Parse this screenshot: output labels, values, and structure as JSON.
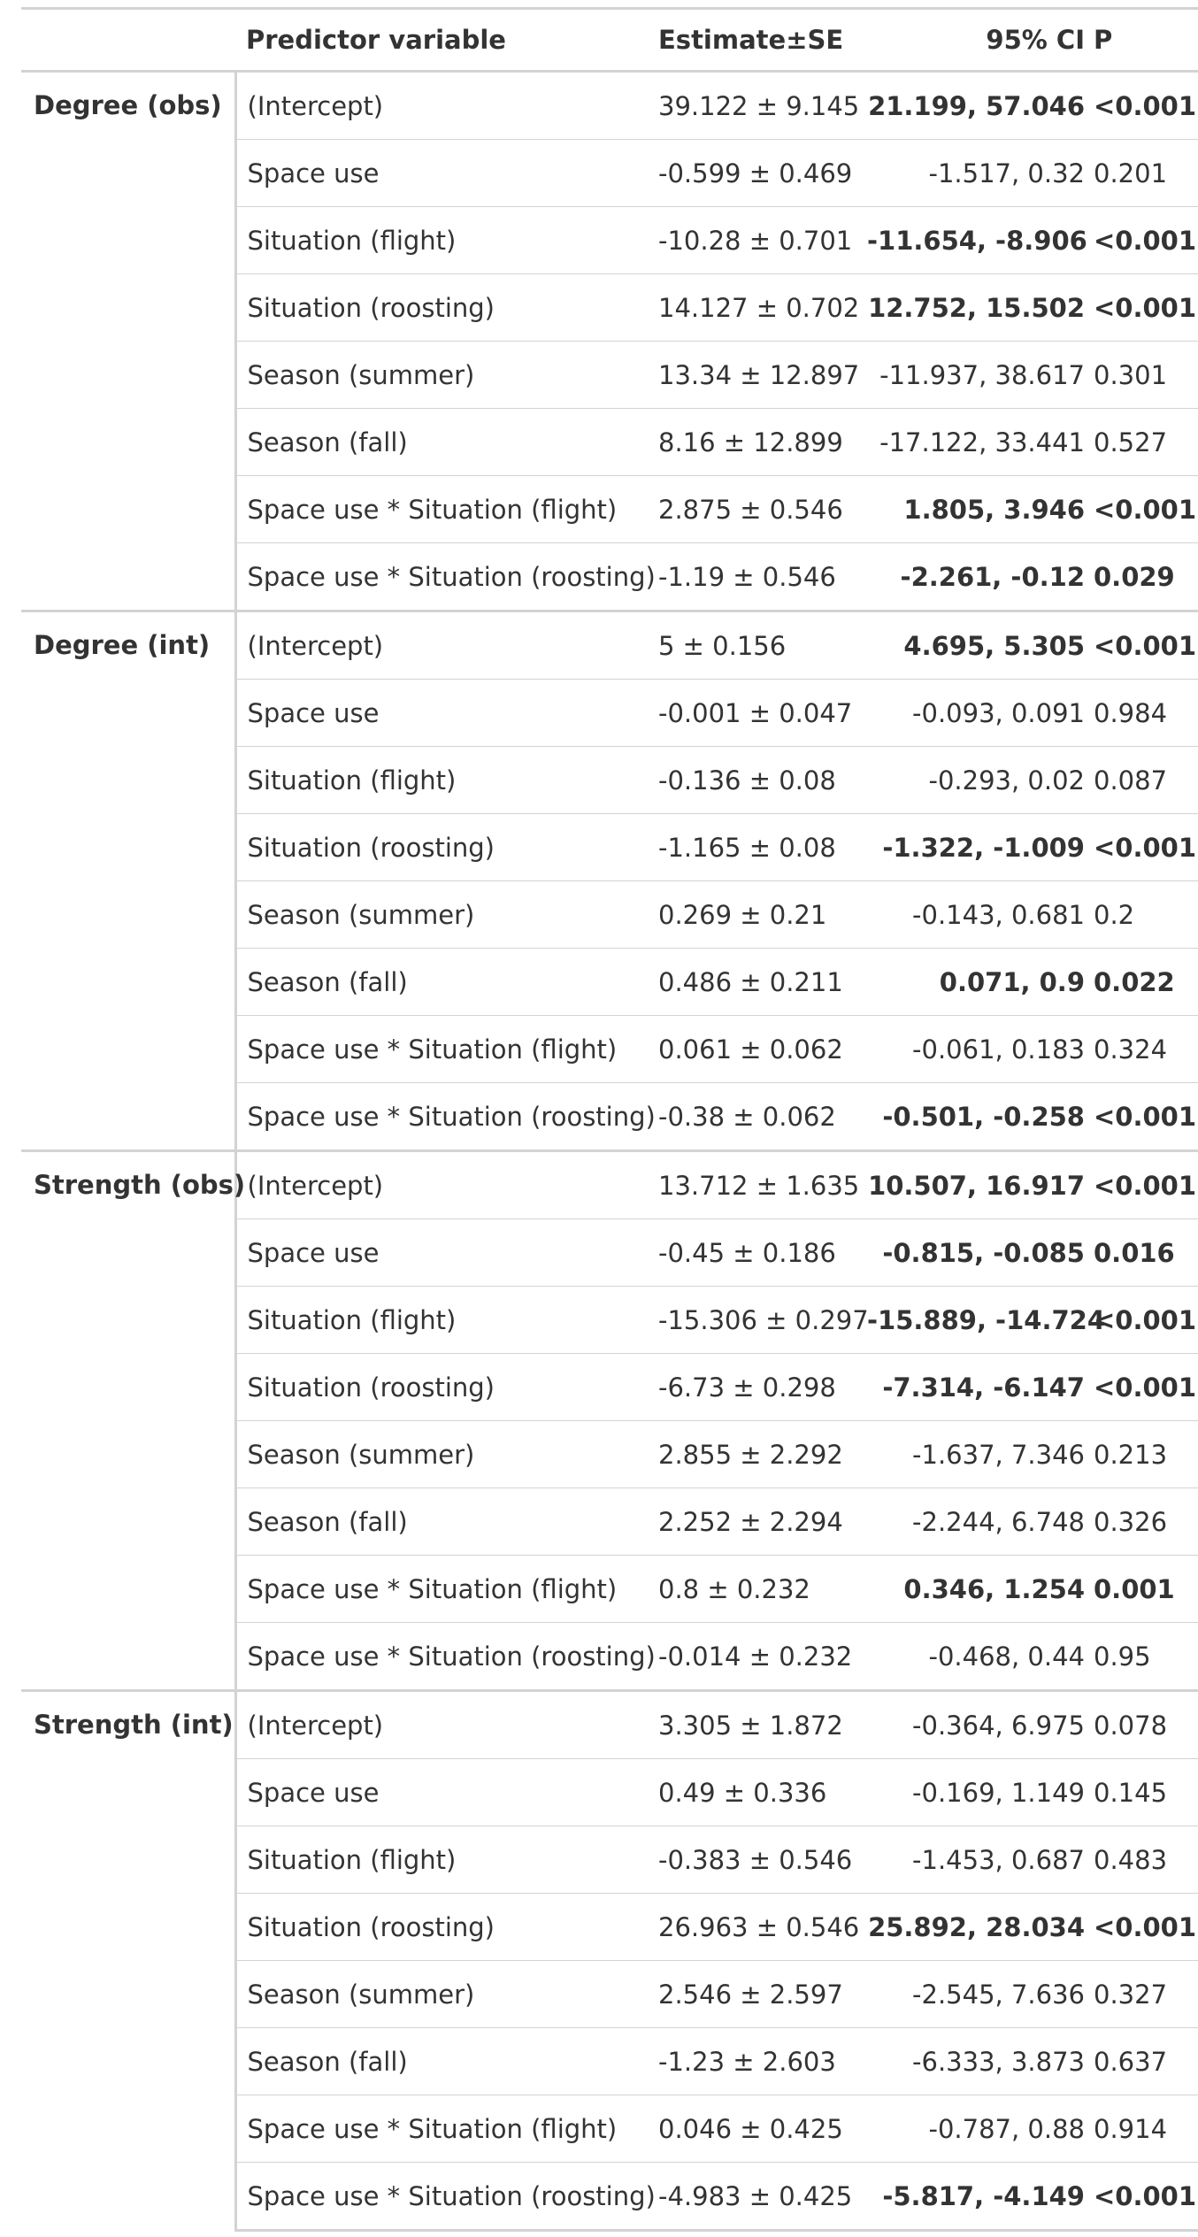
{
  "headers": {
    "group": "",
    "predictor": "Predictor variable",
    "estimate": "Estimate±SE",
    "ci": "95% CI",
    "p": "P"
  },
  "groups": [
    {
      "name": "Degree (obs)",
      "rows": [
        {
          "predictor": "(Intercept)",
          "estimate": "39.122 ± 9.145",
          "ci": "21.199, 57.046",
          "p": "<0.001",
          "sig": true
        },
        {
          "predictor": "Space use",
          "estimate": "-0.599 ± 0.469",
          "ci": "-1.517, 0.32",
          "p": "0.201",
          "sig": false
        },
        {
          "predictor": "Situation (flight)",
          "estimate": "-10.28 ± 0.701",
          "ci": "-11.654, -8.906",
          "p": "<0.001",
          "sig": true
        },
        {
          "predictor": "Situation (roosting)",
          "estimate": "14.127 ± 0.702",
          "ci": "12.752, 15.502",
          "p": "<0.001",
          "sig": true
        },
        {
          "predictor": "Season (summer)",
          "estimate": "13.34 ± 12.897",
          "ci": "-11.937, 38.617",
          "p": "0.301",
          "sig": false
        },
        {
          "predictor": "Season (fall)",
          "estimate": "8.16 ± 12.899",
          "ci": "-17.122, 33.441",
          "p": "0.527",
          "sig": false
        },
        {
          "predictor": "Space use * Situation (flight)",
          "estimate": "2.875 ± 0.546",
          "ci": "1.805, 3.946",
          "p": "<0.001",
          "sig": true
        },
        {
          "predictor": "Space use * Situation (roosting)",
          "estimate": "-1.19 ± 0.546",
          "ci": "-2.261, -0.12",
          "p": "0.029",
          "sig": true
        }
      ]
    },
    {
      "name": "Degree (int)",
      "rows": [
        {
          "predictor": "(Intercept)",
          "estimate": "5 ± 0.156",
          "ci": "4.695, 5.305",
          "p": "<0.001",
          "sig": true
        },
        {
          "predictor": "Space use",
          "estimate": "-0.001 ± 0.047",
          "ci": "-0.093, 0.091",
          "p": "0.984",
          "sig": false
        },
        {
          "predictor": "Situation (flight)",
          "estimate": "-0.136 ± 0.08",
          "ci": "-0.293, 0.02",
          "p": "0.087",
          "sig": false
        },
        {
          "predictor": "Situation (roosting)",
          "estimate": "-1.165 ± 0.08",
          "ci": "-1.322, -1.009",
          "p": "<0.001",
          "sig": true
        },
        {
          "predictor": "Season (summer)",
          "estimate": "0.269 ± 0.21",
          "ci": "-0.143, 0.681",
          "p": "0.2",
          "sig": false
        },
        {
          "predictor": "Season (fall)",
          "estimate": "0.486 ± 0.211",
          "ci": "0.071, 0.9",
          "p": "0.022",
          "sig": true
        },
        {
          "predictor": "Space use * Situation (flight)",
          "estimate": "0.061 ± 0.062",
          "ci": "-0.061, 0.183",
          "p": "0.324",
          "sig": false
        },
        {
          "predictor": "Space use * Situation (roosting)",
          "estimate": "-0.38 ± 0.062",
          "ci": "-0.501, -0.258",
          "p": "<0.001",
          "sig": true
        }
      ]
    },
    {
      "name": "Strength (obs)",
      "rows": [
        {
          "predictor": "(Intercept)",
          "estimate": "13.712 ± 1.635",
          "ci": "10.507, 16.917",
          "p": "<0.001",
          "sig": true
        },
        {
          "predictor": "Space use",
          "estimate": "-0.45 ± 0.186",
          "ci": "-0.815, -0.085",
          "p": "0.016",
          "sig": true
        },
        {
          "predictor": "Situation (flight)",
          "estimate": "-15.306 ± 0.297",
          "ci": "-15.889, -14.724",
          "p": "<0.001",
          "sig": true
        },
        {
          "predictor": "Situation (roosting)",
          "estimate": "-6.73 ± 0.298",
          "ci": "-7.314, -6.147",
          "p": "<0.001",
          "sig": true
        },
        {
          "predictor": "Season (summer)",
          "estimate": "2.855 ± 2.292",
          "ci": "-1.637, 7.346",
          "p": "0.213",
          "sig": false
        },
        {
          "predictor": "Season (fall)",
          "estimate": "2.252 ± 2.294",
          "ci": "-2.244, 6.748",
          "p": "0.326",
          "sig": false
        },
        {
          "predictor": "Space use * Situation (flight)",
          "estimate": "0.8 ± 0.232",
          "ci": "0.346, 1.254",
          "p": "0.001",
          "sig": true
        },
        {
          "predictor": "Space use * Situation (roosting)",
          "estimate": "-0.014 ± 0.232",
          "ci": "-0.468, 0.44",
          "p": "0.95",
          "sig": false
        }
      ]
    },
    {
      "name": "Strength (int)",
      "rows": [
        {
          "predictor": "(Intercept)",
          "estimate": "3.305 ± 1.872",
          "ci": "-0.364, 6.975",
          "p": "0.078",
          "sig": false
        },
        {
          "predictor": "Space use",
          "estimate": "0.49 ± 0.336",
          "ci": "-0.169, 1.149",
          "p": "0.145",
          "sig": false
        },
        {
          "predictor": "Situation (flight)",
          "estimate": "-0.383 ± 0.546",
          "ci": "-1.453, 0.687",
          "p": "0.483",
          "sig": false
        },
        {
          "predictor": "Situation (roosting)",
          "estimate": "26.963 ± 0.546",
          "ci": "25.892, 28.034",
          "p": "<0.001",
          "sig": true
        },
        {
          "predictor": "Season (summer)",
          "estimate": "2.546 ± 2.597",
          "ci": "-2.545, 7.636",
          "p": "0.327",
          "sig": false
        },
        {
          "predictor": "Season (fall)",
          "estimate": "-1.23 ± 2.603",
          "ci": "-6.333, 3.873",
          "p": "0.637",
          "sig": false
        },
        {
          "predictor": "Space use * Situation (flight)",
          "estimate": "0.046 ± 0.425",
          "ci": "-0.787, 0.88",
          "p": "0.914",
          "sig": false
        },
        {
          "predictor": "Space use * Situation (roosting)",
          "estimate": "-4.983 ± 0.425",
          "ci": "-5.817, -4.149",
          "p": "<0.001",
          "sig": true
        }
      ]
    }
  ]
}
